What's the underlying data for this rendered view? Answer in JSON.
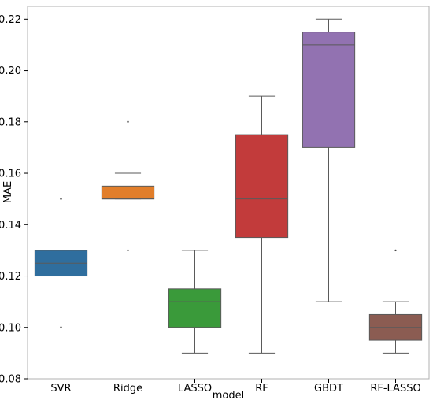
{
  "chart_data": {
    "type": "box",
    "title": "",
    "xlabel": "model",
    "ylabel": "MAE",
    "ylim": [
      0.08,
      0.225
    ],
    "yticks": [
      "0.08",
      "0.10",
      "0.12",
      "0.14",
      "0.16",
      "0.18",
      "0.20",
      "0.22"
    ],
    "grid": false,
    "categories": [
      "SVR",
      "Ridge",
      "LASSO",
      "RF",
      "GBDT",
      "RF-LASSO"
    ],
    "boxes": [
      {
        "category": "SVR",
        "color": "#2f6e9e",
        "whisker_low": 0.12,
        "q1": 0.12,
        "median": 0.125,
        "q3": 0.13,
        "whisker_high": 0.13,
        "outliers": [
          0.15,
          0.1
        ]
      },
      {
        "category": "Ridge",
        "color": "#e17e2b",
        "whisker_low": 0.15,
        "q1": 0.15,
        "median": 0.15,
        "q3": 0.155,
        "whisker_high": 0.16,
        "outliers": [
          0.18,
          0.13
        ]
      },
      {
        "category": "LASSO",
        "color": "#3a9a3a",
        "whisker_low": 0.09,
        "q1": 0.1,
        "median": 0.11,
        "q3": 0.115,
        "whisker_high": 0.13,
        "outliers": []
      },
      {
        "category": "RF",
        "color": "#c23b3b",
        "whisker_low": 0.09,
        "q1": 0.135,
        "median": 0.15,
        "q3": 0.175,
        "whisker_high": 0.19,
        "outliers": []
      },
      {
        "category": "GBDT",
        "color": "#9272b1",
        "whisker_low": 0.11,
        "q1": 0.17,
        "median": 0.21,
        "q3": 0.215,
        "whisker_high": 0.22,
        "outliers": []
      },
      {
        "category": "RF-LASSO",
        "color": "#8b5c52",
        "whisker_low": 0.09,
        "q1": 0.095,
        "median": 0.1,
        "q3": 0.105,
        "whisker_high": 0.11,
        "outliers": [
          0.13
        ]
      }
    ]
  }
}
